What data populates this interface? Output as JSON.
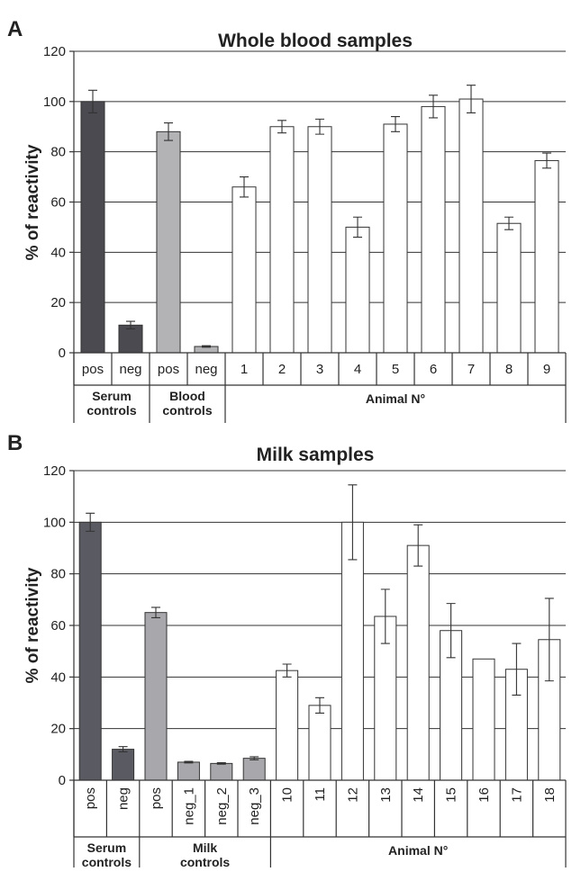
{
  "chart_data": [
    {
      "type": "bar",
      "panel": "A",
      "title": "Whole blood samples",
      "ylabel": "% of reactivity",
      "ylim": [
        0,
        120
      ],
      "yticks": [
        0,
        20,
        40,
        60,
        80,
        100,
        120
      ],
      "grid": true,
      "categories": [
        "pos",
        "neg",
        "pos",
        "neg",
        "1",
        "2",
        "3",
        "4",
        "5",
        "6",
        "7",
        "8",
        "9"
      ],
      "values": [
        100,
        11,
        88,
        2.5,
        66,
        90,
        90,
        50,
        91,
        98,
        101,
        51.5,
        76.5
      ],
      "errors": [
        4.5,
        1.5,
        3.5,
        0.3,
        4,
        2.5,
        3,
        4,
        3,
        4.5,
        5.5,
        2.5,
        3
      ],
      "bar_colors": [
        "#4a4a50",
        "#4a4a50",
        "#b3b3b6",
        "#b3b3b6",
        "#ffffff",
        "#ffffff",
        "#ffffff",
        "#ffffff",
        "#ffffff",
        "#ffffff",
        "#ffffff",
        "#ffffff",
        "#ffffff"
      ],
      "groups": [
        {
          "label_lines": [
            "Serum",
            "controls"
          ],
          "start": 0,
          "count": 2
        },
        {
          "label_lines": [
            "Blood",
            "controls"
          ],
          "start": 2,
          "count": 2
        },
        {
          "label_lines": [
            "Animal N°"
          ],
          "start": 4,
          "count": 9
        }
      ]
    },
    {
      "type": "bar",
      "panel": "B",
      "title": "Milk samples",
      "ylabel": "% of reactivity",
      "ylim": [
        0,
        120
      ],
      "yticks": [
        0,
        20,
        40,
        60,
        80,
        100,
        120
      ],
      "grid": true,
      "categories": [
        "pos",
        "neg",
        "pos",
        "neg_1",
        "neg_2",
        "neg_3",
        "10",
        "11",
        "12",
        "13",
        "14",
        "15",
        "16",
        "17",
        "18"
      ],
      "values": [
        100,
        12,
        65,
        7,
        6.5,
        8.5,
        42.5,
        29,
        100,
        63.5,
        91,
        58,
        47,
        43,
        54.5
      ],
      "errors": [
        3.5,
        1,
        2,
        0.3,
        0.3,
        0.6,
        2.5,
        3,
        14.5,
        10.5,
        8,
        10.5,
        0,
        10,
        16
      ],
      "bar_colors": [
        "#5a5a62",
        "#5a5a62",
        "#a8a8ac",
        "#a8a8ac",
        "#a8a8ac",
        "#a8a8ac",
        "#ffffff",
        "#ffffff",
        "#ffffff",
        "#ffffff",
        "#ffffff",
        "#ffffff",
        "#ffffff",
        "#ffffff",
        "#ffffff"
      ],
      "groups": [
        {
          "label_lines": [
            "Serum",
            "controls"
          ],
          "start": 0,
          "count": 2
        },
        {
          "label_lines": [
            "Milk",
            "controls"
          ],
          "start": 2,
          "count": 4
        },
        {
          "label_lines": [
            "Animal N°"
          ],
          "start": 6,
          "count": 9
        }
      ]
    }
  ]
}
